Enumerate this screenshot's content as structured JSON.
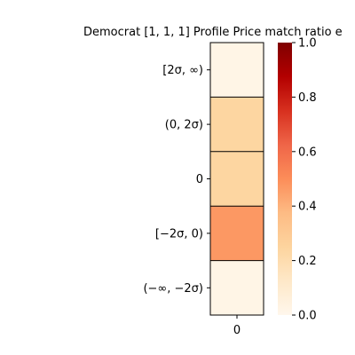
{
  "chart_data": {
    "type": "heatmap",
    "title": "Democrat [1, 1, 1] Profile Price match ratio e",
    "row_labels": [
      "[2σ, ∞)",
      "(0, 2σ)",
      "0",
      "[−2σ, 0)",
      "(−∞, −2σ)"
    ],
    "col_labels": [
      "0"
    ],
    "values": [
      [
        0.02
      ],
      [
        0.24
      ],
      [
        0.24
      ],
      [
        0.47
      ],
      [
        0.02
      ]
    ],
    "vmin": 0.0,
    "vmax": 1.0,
    "colormap": "OrRd",
    "colorbar_ticks": [
      "0.0",
      "0.2",
      "0.4",
      "0.6",
      "0.8",
      "1.0"
    ],
    "colorbar_tick_values": [
      0.0,
      0.2,
      0.4,
      0.6,
      0.8,
      1.0
    ],
    "cell_border_color": "#000000"
  }
}
